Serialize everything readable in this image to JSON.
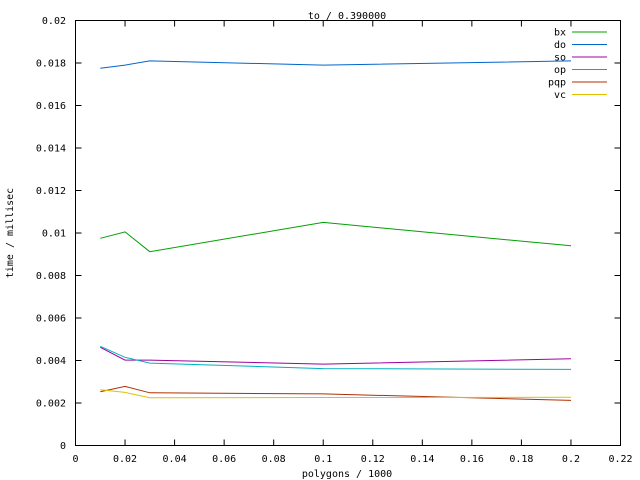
{
  "chart_data": {
    "type": "line",
    "title": "to / 0.390000",
    "xlabel": "polygons / 1000",
    "ylabel": "time / millisec",
    "xlim": [
      0,
      0.22
    ],
    "ylim": [
      0,
      0.02
    ],
    "x_ticks": [
      "0",
      "0.02",
      "0.04",
      "0.06",
      "0.08",
      "0.1",
      "0.12",
      "0.14",
      "0.16",
      "0.18",
      "0.2",
      "0.22"
    ],
    "y_ticks": [
      "0",
      "0.002",
      "0.004",
      "0.006",
      "0.008",
      "0.01",
      "0.012",
      "0.014",
      "0.016",
      "0.018",
      "0.02"
    ],
    "grid": false,
    "legend_position": "top-right",
    "series": [
      {
        "name": "bx",
        "color": "#00a000",
        "x": [
          0.01,
          0.02,
          0.03,
          0.1,
          0.2
        ],
        "y": [
          0.00975,
          0.01005,
          0.00912,
          0.0105,
          0.0094
        ]
      },
      {
        "name": "do",
        "color": "#0066cc",
        "x": [
          0.01,
          0.02,
          0.03,
          0.1,
          0.2
        ],
        "y": [
          0.01775,
          0.0179,
          0.0181,
          0.0179,
          0.0181
        ]
      },
      {
        "name": "so",
        "color": "#a000a0",
        "x": [
          0.01,
          0.02,
          0.03,
          0.1,
          0.2
        ],
        "y": [
          0.00462,
          0.00402,
          0.00402,
          0.00383,
          0.00408
        ]
      },
      {
        "name": "op",
        "color": "#00b0c0",
        "x": [
          0.01,
          0.02,
          0.03,
          0.1,
          0.2
        ],
        "y": [
          0.00467,
          0.00415,
          0.00388,
          0.00362,
          0.00358
        ]
      },
      {
        "name": "pqp",
        "color": "#b03000",
        "x": [
          0.01,
          0.02,
          0.03,
          0.1,
          0.2
        ],
        "y": [
          0.00253,
          0.00278,
          0.00248,
          0.00243,
          0.00212
        ]
      },
      {
        "name": "vc",
        "color": "#e0c000",
        "x": [
          0.01,
          0.02,
          0.03,
          0.1,
          0.2
        ],
        "y": [
          0.00262,
          0.0025,
          0.00225,
          0.00226,
          0.00227
        ]
      }
    ]
  }
}
